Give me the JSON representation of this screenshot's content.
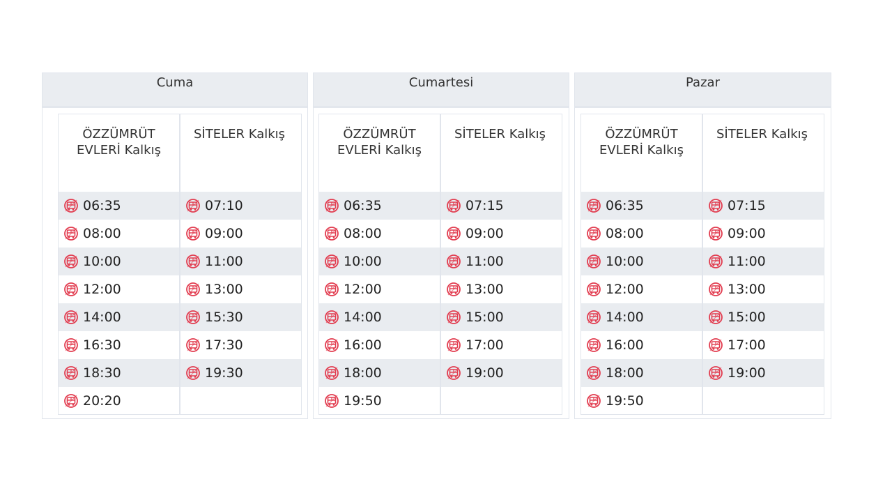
{
  "icon": {
    "name": "bus-icon",
    "color": "#e23c4f"
  },
  "days": [
    {
      "title": "Cuma",
      "columns": [
        {
          "header": [
            "ÖZZÜMRÜT",
            "EVLERİ Kalkış"
          ],
          "times": [
            "06:35",
            "08:00",
            "10:00",
            "12:00",
            "14:00",
            "16:30",
            "18:30",
            "20:20"
          ]
        },
        {
          "header": [
            "SİTELER Kalkış"
          ],
          "times": [
            "07:10",
            "09:00",
            "11:00",
            "13:00",
            "15:30",
            "17:30",
            "19:30"
          ]
        }
      ]
    },
    {
      "title": "Cumartesi",
      "columns": [
        {
          "header": [
            "ÖZZÜMRÜT",
            "EVLERİ Kalkış"
          ],
          "times": [
            "06:35",
            "08:00",
            "10:00",
            "12:00",
            "14:00",
            "16:00",
            "18:00",
            "19:50"
          ]
        },
        {
          "header": [
            "SİTELER Kalkış"
          ],
          "times": [
            "07:15",
            "09:00",
            "11:00",
            "13:00",
            "15:00",
            "17:00",
            "19:00"
          ]
        }
      ]
    },
    {
      "title": "Pazar",
      "columns": [
        {
          "header": [
            "ÖZZÜMRÜT",
            "EVLERİ Kalkış"
          ],
          "times": [
            "06:35",
            "08:00",
            "10:00",
            "12:00",
            "14:00",
            "16:00",
            "18:00",
            "19:50"
          ]
        },
        {
          "header": [
            "SİTELER Kalkış"
          ],
          "times": [
            "07:15",
            "09:00",
            "11:00",
            "13:00",
            "15:00",
            "17:00",
            "19:00"
          ]
        }
      ]
    }
  ]
}
